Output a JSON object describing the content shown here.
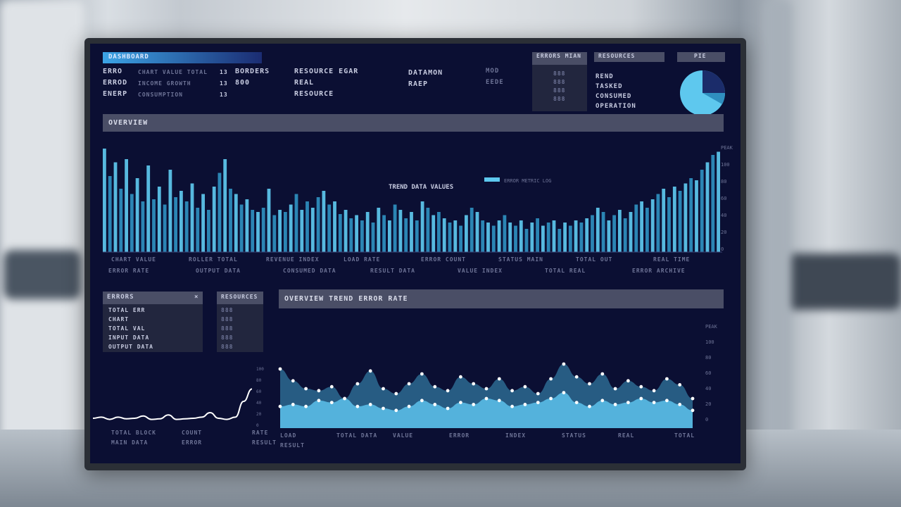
{
  "top_tab": "DASHBOARD",
  "summary": {
    "col1": [
      "ERRO",
      "ERROD",
      "ENERP"
    ],
    "col1_dim": [
      "CHART VALUE TOTAL",
      "INCOME GROWTH",
      "CONSUMPTION"
    ],
    "col2_num": [
      "13",
      "13",
      "13"
    ],
    "col2": [
      "BORDERS",
      "800"
    ],
    "col3": [
      "RESOURCE EGAR",
      "REAL",
      "RESOURCE"
    ],
    "col4": [
      "DATAMON",
      "RAEP"
    ],
    "col5": [
      "MOD",
      "EEDE"
    ],
    "mini_table_title": "ERRORS MIAN",
    "mini_table_vals": [
      "888",
      "888",
      "888",
      "888"
    ],
    "side_title": "RESOURCES",
    "side_items": [
      "REND",
      "TASKED",
      "CONSUMED",
      "OPERATION"
    ],
    "pie_title": "PIE"
  },
  "overview": {
    "header": "OVERVIEW",
    "mid_label": "TREND DATA VALUES",
    "legend_label": "ERROR METRIC LOG",
    "yaxis": [
      "PEAK",
      "100",
      "80",
      "60",
      "40",
      "20",
      "0"
    ],
    "footer_row1": [
      "CHART VALUE",
      "ROLLER TOTAL",
      "REVENUE INDEX",
      "LOAD RATE",
      "ERROR COUNT",
      "STATUS MAIN",
      "TOTAL OUT",
      "REAL TIME"
    ],
    "footer_row2": [
      "ERROR RATE",
      "OUTPUT DATA",
      "CONSUMED DATA",
      "RESULT DATA",
      "VALUE INDEX",
      "TOTAL REAL",
      "ERROR ARCHIVE"
    ]
  },
  "left_panel": {
    "title": "ERRORS",
    "items": [
      "TOTAL ERR",
      "CHART",
      "TOTAL VAL",
      "INPUT DATA",
      "OUTPUT DATA"
    ],
    "right_title": "RESOURCES",
    "right_items": [
      "888",
      "888",
      "888",
      "888",
      "888"
    ],
    "axis_vals": [
      "100",
      "80",
      "60",
      "40",
      "20",
      "0"
    ],
    "footer_row1": [
      "TOTAL BLOCK",
      "COUNT",
      "RATE"
    ],
    "footer_row2": [
      "MAIN DATA",
      "ERROR",
      "RESULT"
    ]
  },
  "area_panel": {
    "header": "OVERVIEW TREND ERROR RATE",
    "yaxis": [
      "PEAK",
      "100",
      "80",
      "60",
      "40",
      "20",
      "0"
    ],
    "footer": [
      "LOAD",
      "TOTAL DATA",
      "VALUE",
      "ERROR",
      "INDEX",
      "STATUS",
      "REAL",
      "TOTAL"
    ],
    "footer_row2": [
      "RESULT"
    ]
  },
  "colors": {
    "screen_bg": "#0b0f33",
    "bar_light": "#5ec8ee",
    "bar_dark": "#2f8fbf",
    "header_bg": "#4a4e66",
    "area_dark": "#2d6a92",
    "area_light": "#56b6e0"
  },
  "chart_data": [
    {
      "type": "bar",
      "title": "",
      "values": [
        98,
        72,
        85,
        60,
        88,
        55,
        70,
        48,
        82,
        50,
        62,
        45,
        78,
        52,
        58,
        48,
        65,
        42,
        55,
        40,
        62,
        75,
        88,
        60,
        55,
        45,
        50,
        40,
        38,
        42,
        60,
        35,
        40,
        38,
        45,
        55,
        40,
        48,
        42,
        52,
        58,
        45,
        48,
        36,
        40,
        32,
        35,
        30,
        38,
        28,
        42,
        35,
        30,
        45,
        40,
        32,
        38,
        30,
        48,
        42,
        35,
        38,
        32,
        28,
        30,
        25,
        35,
        42,
        38,
        30,
        28,
        25,
        30,
        35,
        28,
        25,
        30,
        22,
        28,
        32,
        25,
        28,
        30,
        22,
        28,
        25,
        30,
        28,
        32,
        35,
        42,
        38,
        30,
        35,
        40,
        32,
        38,
        45,
        48,
        42,
        50,
        55,
        60,
        52,
        62,
        58,
        65,
        70,
        68,
        78,
        85,
        92,
        95
      ],
      "ylim": [
        0,
        100
      ]
    },
    {
      "type": "area",
      "title": "",
      "series": [
        {
          "values": [
            60,
            48,
            40,
            38,
            42,
            30,
            45,
            58,
            40,
            35,
            45,
            55,
            42,
            38,
            52,
            45,
            40,
            50,
            38,
            42,
            35,
            50,
            65,
            52,
            45,
            55,
            40,
            48,
            42,
            38,
            50,
            44,
            30
          ]
        },
        {
          "values": [
            22,
            24,
            22,
            28,
            26,
            30,
            22,
            24,
            20,
            18,
            22,
            28,
            24,
            20,
            26,
            24,
            30,
            28,
            22,
            24,
            26,
            30,
            36,
            26,
            22,
            28,
            24,
            26,
            30,
            26,
            28,
            24,
            18
          ]
        }
      ],
      "ylim": [
        0,
        100
      ]
    },
    {
      "type": "line",
      "title": "",
      "values": [
        10,
        12,
        8,
        12,
        9,
        10,
        14,
        8,
        9,
        16,
        8,
        9,
        10,
        12,
        20,
        10,
        8,
        12,
        40,
        62
      ]
    }
  ]
}
